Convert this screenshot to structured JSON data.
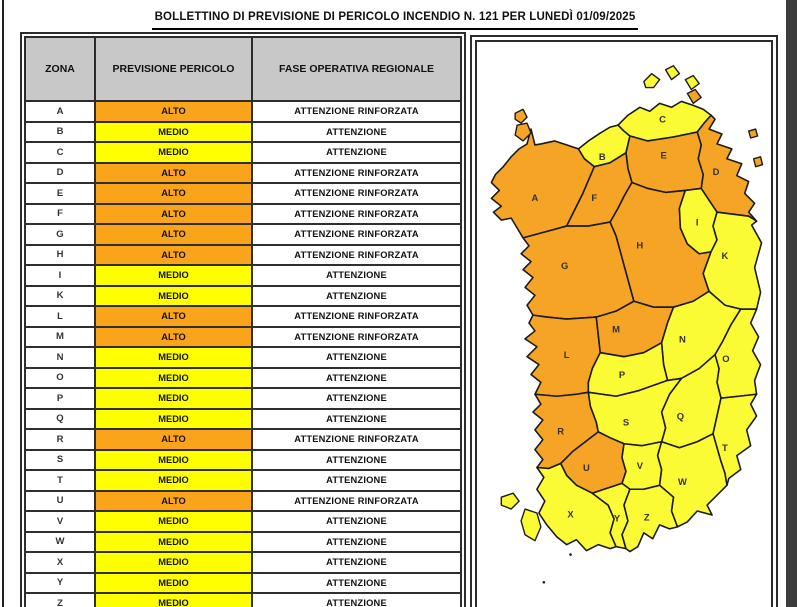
{
  "page": {
    "title": "BOLLETTINO DI PREVISIONE DI PERICOLO INCENDIO N. 121 PER LUNEDÌ 01/09/2025"
  },
  "colors": {
    "alto": "#F9A41B",
    "medio": "#FFFF00",
    "map_alto": "#F6A426",
    "map_medio": "#FBFB35",
    "header_bg": "#C8C8C8",
    "border": "#2F2F2F",
    "window_edge": "#3C3C3C"
  },
  "table": {
    "headers": [
      "ZONA",
      "PREVISIONE PERICOLO",
      "FASE OPERATIVA REGIONALE"
    ],
    "rows": [
      {
        "zona": "A",
        "previsione": "ALTO",
        "fase": "ATTENZIONE RINFORZATA"
      },
      {
        "zona": "B",
        "previsione": "MEDIO",
        "fase": "ATTENZIONE"
      },
      {
        "zona": "C",
        "previsione": "MEDIO",
        "fase": "ATTENZIONE"
      },
      {
        "zona": "D",
        "previsione": "ALTO",
        "fase": "ATTENZIONE RINFORZATA"
      },
      {
        "zona": "E",
        "previsione": "ALTO",
        "fase": "ATTENZIONE RINFORZATA"
      },
      {
        "zona": "F",
        "previsione": "ALTO",
        "fase": "ATTENZIONE RINFORZATA"
      },
      {
        "zona": "G",
        "previsione": "ALTO",
        "fase": "ATTENZIONE RINFORZATA"
      },
      {
        "zona": "H",
        "previsione": "ALTO",
        "fase": "ATTENZIONE RINFORZATA"
      },
      {
        "zona": "I",
        "previsione": "MEDIO",
        "fase": "ATTENZIONE"
      },
      {
        "zona": "K",
        "previsione": "MEDIO",
        "fase": "ATTENZIONE"
      },
      {
        "zona": "L",
        "previsione": "ALTO",
        "fase": "ATTENZIONE RINFORZATA"
      },
      {
        "zona": "M",
        "previsione": "ALTO",
        "fase": "ATTENZIONE RINFORZATA"
      },
      {
        "zona": "N",
        "previsione": "MEDIO",
        "fase": "ATTENZIONE"
      },
      {
        "zona": "O",
        "previsione": "MEDIO",
        "fase": "ATTENZIONE"
      },
      {
        "zona": "P",
        "previsione": "MEDIO",
        "fase": "ATTENZIONE"
      },
      {
        "zona": "Q",
        "previsione": "MEDIO",
        "fase": "ATTENZIONE"
      },
      {
        "zona": "R",
        "previsione": "ALTO",
        "fase": "ATTENZIONE RINFORZATA"
      },
      {
        "zona": "S",
        "previsione": "MEDIO",
        "fase": "ATTENZIONE"
      },
      {
        "zona": "T",
        "previsione": "MEDIO",
        "fase": "ATTENZIONE"
      },
      {
        "zona": "U",
        "previsione": "ALTO",
        "fase": "ATTENZIONE RINFORZATA"
      },
      {
        "zona": "V",
        "previsione": "MEDIO",
        "fase": "ATTENZIONE"
      },
      {
        "zona": "W",
        "previsione": "MEDIO",
        "fase": "ATTENZIONE"
      },
      {
        "zona": "X",
        "previsione": "MEDIO",
        "fase": "ATTENZIONE"
      },
      {
        "zona": "Y",
        "previsione": "MEDIO",
        "fase": "ATTENZIONE"
      },
      {
        "zona": "Z",
        "previsione": "MEDIO",
        "fase": "ATTENZIONE"
      }
    ]
  },
  "map": {
    "region": "Sardegna",
    "zones": [
      {
        "id": "A",
        "level": "ALTO"
      },
      {
        "id": "B",
        "level": "MEDIO"
      },
      {
        "id": "C",
        "level": "MEDIO"
      },
      {
        "id": "D",
        "level": "ALTO"
      },
      {
        "id": "E",
        "level": "ALTO"
      },
      {
        "id": "F",
        "level": "ALTO"
      },
      {
        "id": "G",
        "level": "ALTO"
      },
      {
        "id": "H",
        "level": "ALTO"
      },
      {
        "id": "I",
        "level": "MEDIO"
      },
      {
        "id": "K",
        "level": "MEDIO"
      },
      {
        "id": "L",
        "level": "ALTO"
      },
      {
        "id": "M",
        "level": "ALTO"
      },
      {
        "id": "N",
        "level": "MEDIO"
      },
      {
        "id": "O",
        "level": "MEDIO"
      },
      {
        "id": "P",
        "level": "MEDIO"
      },
      {
        "id": "Q",
        "level": "MEDIO"
      },
      {
        "id": "R",
        "level": "ALTO"
      },
      {
        "id": "S",
        "level": "MEDIO"
      },
      {
        "id": "T",
        "level": "MEDIO"
      },
      {
        "id": "U",
        "level": "ALTO"
      },
      {
        "id": "V",
        "level": "MEDIO"
      },
      {
        "id": "W",
        "level": "MEDIO"
      },
      {
        "id": "X",
        "level": "MEDIO"
      },
      {
        "id": "Y",
        "level": "MEDIO"
      },
      {
        "id": "Z",
        "level": "MEDIO"
      }
    ]
  }
}
